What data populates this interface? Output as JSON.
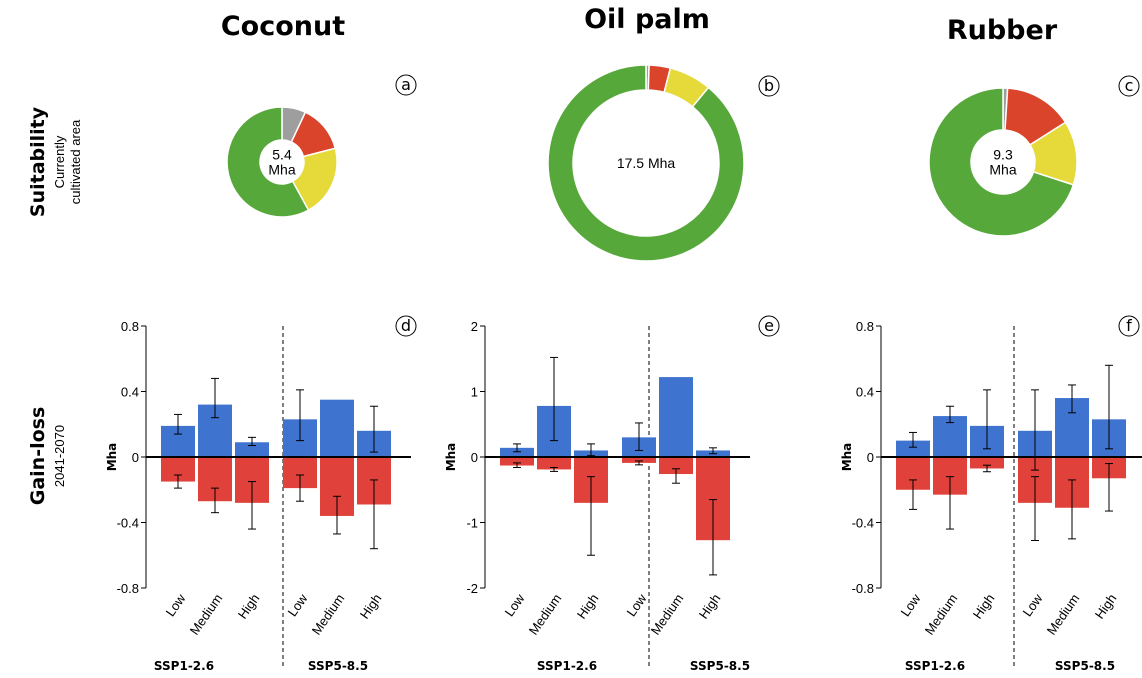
{
  "colors": {
    "gain": "#3f73d0",
    "loss": "#e0413a",
    "pie": [
      "#9e9e9e",
      "#d9442b",
      "#e6d93a",
      "#57a83a"
    ]
  },
  "rows": {
    "suitability_title": "Suitability",
    "suitability_sub1": "Currently",
    "suitability_sub2": "cultivated area",
    "gainloss_title": "Gain-loss",
    "gainloss_sub": "2041-2070"
  },
  "chart_data": [
    {
      "type": "pie",
      "panel": "a",
      "title": "Coconut",
      "center_label": [
        "5.4",
        "Mha"
      ],
      "slices": [
        7,
        14,
        21,
        58
      ]
    },
    {
      "type": "pie",
      "panel": "b",
      "title": "Oil palm",
      "center_label": [
        "17.5 Mha"
      ],
      "slices": [
        0.5,
        3.5,
        7,
        89
      ]
    },
    {
      "type": "pie",
      "panel": "c",
      "title": "Rubber",
      "center_label": [
        "9.3",
        "Mha"
      ],
      "slices": [
        1,
        15,
        14,
        70
      ]
    },
    {
      "type": "bar",
      "panel": "d",
      "ylabel": "Mha",
      "ylim": [
        -0.8,
        0.8
      ],
      "yticks": [
        "0.8",
        "0.4",
        "0",
        "-0.4",
        "-0.8"
      ],
      "ytick_values": [
        0.8,
        0.4,
        0,
        -0.4,
        -0.8
      ],
      "groups": [
        "SSP1-2.6",
        "SSP5-8.5"
      ],
      "categories": [
        "Low",
        "Medium",
        "High",
        "Low",
        "Medium",
        "High"
      ],
      "gain": [
        0.19,
        0.32,
        0.09,
        0.23,
        0.35,
        0.16
      ],
      "gain_err": [
        [
          0.14,
          0.26
        ],
        [
          0.24,
          0.48
        ],
        [
          0.07,
          0.12
        ],
        [
          0.1,
          0.41
        ],
        null,
        [
          0.03,
          0.31
        ]
      ],
      "loss": [
        -0.15,
        -0.27,
        -0.28,
        -0.19,
        -0.36,
        -0.29
      ],
      "loss_err": [
        [
          -0.11,
          -0.19
        ],
        [
          -0.19,
          -0.34
        ],
        [
          -0.15,
          -0.44
        ],
        [
          -0.11,
          -0.27
        ],
        [
          -0.24,
          -0.47
        ],
        [
          -0.14,
          -0.56
        ]
      ]
    },
    {
      "type": "bar",
      "panel": "e",
      "ylabel": "Mha",
      "ylim": [
        -2,
        2
      ],
      "yticks": [
        "2",
        "1",
        "0",
        "-1",
        "-2"
      ],
      "ytick_values": [
        2,
        1,
        0,
        -1,
        -2
      ],
      "groups": [
        "SSP1-2.6",
        "SSP5-8.5"
      ],
      "categories": [
        "Low",
        "Medium",
        "High",
        "Low",
        "Medium",
        "High"
      ],
      "gain": [
        0.14,
        0.78,
        0.1,
        0.3,
        1.22,
        0.1
      ],
      "gain_err": [
        [
          0.08,
          0.2
        ],
        [
          0.25,
          1.52
        ],
        [
          0.02,
          0.2
        ],
        [
          0.1,
          0.52
        ],
        null,
        [
          0.05,
          0.14
        ]
      ],
      "loss": [
        -0.13,
        -0.19,
        -0.7,
        -0.09,
        -0.26,
        -1.27
      ],
      "loss_err": [
        [
          -0.09,
          -0.16
        ],
        [
          -0.16,
          -0.22
        ],
        [
          -0.3,
          -1.5
        ],
        [
          -0.06,
          -0.12
        ],
        [
          -0.18,
          -0.4
        ],
        [
          -0.65,
          -1.8
        ]
      ]
    },
    {
      "type": "bar",
      "panel": "f",
      "ylabel": "Mha",
      "ylim": [
        -0.8,
        0.8
      ],
      "yticks": [
        "0.8",
        "0.4",
        "0",
        "-0.4",
        "-0.8"
      ],
      "ytick_values": [
        0.8,
        0.4,
        0,
        -0.4,
        -0.8
      ],
      "groups": [
        "SSP1-2.6",
        "SSP5-8.5"
      ],
      "categories": [
        "Low",
        "Medium",
        "High",
        "Low",
        "Medium",
        "High"
      ],
      "gain": [
        0.1,
        0.25,
        0.19,
        0.16,
        0.36,
        0.23
      ],
      "gain_err": [
        [
          0.06,
          0.15
        ],
        [
          0.21,
          0.31
        ],
        [
          0.05,
          0.41
        ],
        [
          -0.08,
          0.41
        ],
        [
          0.27,
          0.44
        ],
        [
          0.05,
          0.56
        ]
      ],
      "loss": [
        -0.2,
        -0.23,
        -0.07,
        -0.28,
        -0.31,
        -0.13
      ],
      "loss_err": [
        [
          -0.14,
          -0.32
        ],
        [
          -0.12,
          -0.44
        ],
        [
          -0.05,
          -0.09
        ],
        [
          -0.12,
          -0.51
        ],
        [
          -0.14,
          -0.5
        ],
        [
          -0.04,
          -0.33
        ]
      ]
    }
  ]
}
